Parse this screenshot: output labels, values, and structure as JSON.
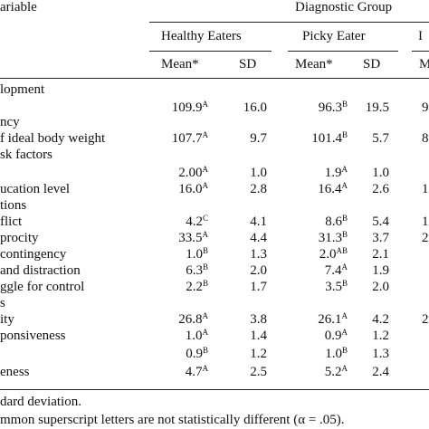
{
  "header": {
    "variable_label": "ariable",
    "group_label": "Diagnostic Group",
    "groups": [
      "Healthy Eaters",
      "Picky Eater",
      "I"
    ],
    "mean_label": "Mean*",
    "sd_label": "SD",
    "partial_mean_label": "M"
  },
  "rows": [
    {
      "label": "lopment",
      "m1": "",
      "s1": "",
      "m2": "",
      "s2": "",
      "m3": ""
    },
    {
      "label": "",
      "m1": "109.9",
      "sup1": "A",
      "s1": "16.0",
      "m2": "96.3",
      "sup2": "B",
      "s2": "19.5",
      "m3": "9"
    },
    {
      "label": "ncy",
      "m1": "",
      "s1": "",
      "m2": "",
      "s2": "",
      "m3": ""
    },
    {
      "label": "f ideal body weight",
      "m1": "107.7",
      "sup1": "A",
      "s1": "9.7",
      "m2": "101.4",
      "sup2": "B",
      "s2": "5.7",
      "m3": "8"
    },
    {
      "label": "sk factors",
      "m1": "",
      "s1": "",
      "m2": "",
      "s2": "",
      "m3": ""
    },
    {
      "label": "",
      "m1": "2.00",
      "sup1": "A",
      "s1": "1.0",
      "m2": "1.9",
      "sup2": "A",
      "s2": "1.0",
      "m3": ""
    },
    {
      "label": "ucation level",
      "m1": "16.0",
      "sup1": "A",
      "s1": "2.8",
      "m2": "16.4",
      "sup2": "A",
      "s2": "2.6",
      "m3": "1"
    },
    {
      "label": "tions",
      "m1": "",
      "s1": "",
      "m2": "",
      "s2": "",
      "m3": ""
    },
    {
      "label": "flict",
      "m1": "4.2",
      "sup1": "C",
      "s1": "4.1",
      "m2": "8.6",
      "sup2": "B",
      "s2": "5.4",
      "m3": "1"
    },
    {
      "label": "procity",
      "m1": "33.5",
      "sup1": "A",
      "s1": "4.4",
      "m2": "31.3",
      "sup2": "B",
      "s2": "3.7",
      "m3": "2"
    },
    {
      "label": "contingency",
      "m1": "1.0",
      "sup1": "B",
      "s1": "1.3",
      "m2": "2.0",
      "sup2": "AB",
      "s2": "2.1",
      "m3": ""
    },
    {
      "label": "and distraction",
      "m1": "6.3",
      "sup1": "B",
      "s1": "2.0",
      "m2": "7.4",
      "sup2": "A",
      "s2": "1.9",
      "m3": ""
    },
    {
      "label": "ggle for control",
      "m1": "2.2",
      "sup1": "B",
      "s1": "1.7",
      "m2": "3.5",
      "sup2": "B",
      "s2": "2.0",
      "m3": ""
    },
    {
      "label": "s",
      "m1": "",
      "s1": "",
      "m2": "",
      "s2": "",
      "m3": ""
    },
    {
      "label": "ity",
      "m1": "26.8",
      "sup1": "A",
      "s1": "3.8",
      "m2": "26.1",
      "sup2": "A",
      "s2": "4.2",
      "m3": "2"
    },
    {
      "label": "ponsiveness",
      "m1": "1.0",
      "sup1": "A",
      "s1": "1.4",
      "m2": "0.9",
      "sup2": "A",
      "s2": "1.2",
      "m3": ""
    },
    {
      "label": "",
      "m1": "0.9",
      "sup1": "B",
      "s1": "1.2",
      "m2": "1.0",
      "sup2": "B",
      "s2": "1.3",
      "m3": ""
    },
    {
      "label": "eness",
      "m1": "4.7",
      "sup1": "A",
      "s1": "2.5",
      "m2": "5.2",
      "sup2": "A",
      "s2": "2.4",
      "m3": ""
    }
  ],
  "footnotes": [
    "dard deviation.",
    "mmon superscript letters are not statistically different (α = .05)."
  ]
}
